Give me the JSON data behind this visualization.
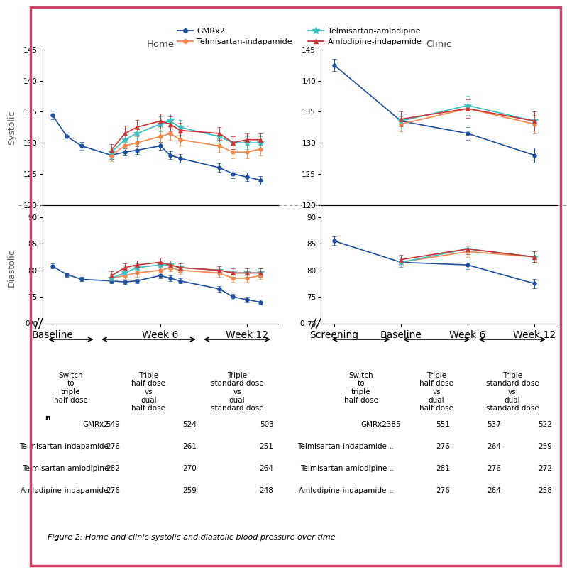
{
  "series_order": [
    "GMRx2",
    "Telmisartan-indapamide",
    "Telmisartan-amlodipine",
    "Amlodipine-indapamide"
  ],
  "colors": {
    "GMRx2": "#1f4e9e",
    "Telmisartan-indapamide": "#f4874b",
    "Telmisartan-amlodipine": "#3dbfbf",
    "Amlodipine-indapamide": "#cc3333"
  },
  "markers": {
    "GMRx2": "o",
    "Telmisartan-indapamide": "o",
    "Telmisartan-amlodipine": "*",
    "Amlodipine-indapamide": "^"
  },
  "marker_sizes": {
    "GMRx2": 4,
    "Telmisartan-indapamide": 4,
    "Telmisartan-amlodipine": 7,
    "Amlodipine-indapamide": 4
  },
  "home": {
    "n_points": 13,
    "x_positions": [
      0,
      0.75,
      1.5,
      3.0,
      3.7,
      4.3,
      5.5,
      6.0,
      6.5,
      8.5,
      9.2,
      9.9,
      10.6
    ],
    "xtick_positions": [
      0,
      5.5,
      9.9
    ],
    "xtick_labels": [
      "Baseline",
      "Week 6",
      "Week 12"
    ],
    "xlim": [
      -0.5,
      11.5
    ],
    "systolic": {
      "ylim": [
        120,
        145
      ],
      "yticks": [
        120,
        125,
        130,
        135,
        140,
        145
      ],
      "GMRx2": [
        134.5,
        131.0,
        129.5,
        128.0,
        128.5,
        128.8,
        129.5,
        128.0,
        127.5,
        126.0,
        125.0,
        124.5,
        124.0
      ],
      "Telmisartan-indapamide": [
        null,
        null,
        null,
        128.0,
        129.5,
        130.0,
        131.0,
        131.5,
        130.5,
        129.5,
        128.5,
        128.5,
        129.0
      ],
      "Telmisartan-amlodipine": [
        null,
        null,
        null,
        128.5,
        130.5,
        131.5,
        133.0,
        133.5,
        132.5,
        131.0,
        130.0,
        130.0,
        130.0
      ],
      "Amlodipine-indapamide": [
        null,
        null,
        null,
        128.8,
        131.5,
        132.5,
        133.5,
        133.0,
        132.0,
        131.5,
        130.0,
        130.5,
        130.5
      ],
      "GMRx2_err": [
        0.7,
        0.6,
        0.6,
        0.6,
        0.6,
        0.6,
        0.6,
        0.6,
        0.7,
        0.7,
        0.7,
        0.7,
        0.7
      ],
      "Telmisartan-indapamide_err": [
        null,
        null,
        null,
        1.0,
        1.0,
        1.0,
        1.0,
        1.0,
        1.0,
        1.0,
        1.0,
        1.0,
        1.0
      ],
      "Telmisartan-amlodipine_err": [
        null,
        null,
        null,
        1.0,
        1.0,
        1.2,
        1.2,
        1.2,
        1.2,
        1.0,
        1.0,
        1.0,
        1.0
      ],
      "Amlodipine-indapamide_err": [
        null,
        null,
        null,
        1.0,
        1.2,
        1.2,
        1.2,
        1.2,
        1.2,
        1.0,
        1.0,
        1.0,
        1.0
      ]
    },
    "diastolic": {
      "ylim": [
        70,
        91
      ],
      "yticks": [
        70,
        75,
        80,
        85,
        90
      ],
      "show_zero": true,
      "GMRx2": [
        80.8,
        79.2,
        78.3,
        78.0,
        77.8,
        78.0,
        79.0,
        78.5,
        78.0,
        76.5,
        75.0,
        74.5,
        74.0
      ],
      "Telmisartan-indapamide": [
        null,
        null,
        null,
        78.5,
        79.0,
        79.5,
        80.0,
        80.5,
        80.0,
        79.5,
        78.5,
        78.5,
        79.0
      ],
      "Telmisartan-amlodipine": [
        null,
        null,
        null,
        78.5,
        79.5,
        80.5,
        81.0,
        81.0,
        80.5,
        80.0,
        79.5,
        79.5,
        79.5
      ],
      "Amlodipine-indapamide": [
        null,
        null,
        null,
        79.0,
        80.5,
        81.0,
        81.5,
        81.0,
        80.5,
        80.0,
        79.5,
        79.5,
        79.5
      ],
      "GMRx2_err": [
        0.5,
        0.4,
        0.4,
        0.4,
        0.4,
        0.4,
        0.5,
        0.5,
        0.5,
        0.5,
        0.5,
        0.5,
        0.5
      ],
      "Telmisartan-indapamide_err": [
        null,
        null,
        null,
        0.7,
        0.7,
        0.7,
        0.7,
        0.7,
        0.7,
        0.7,
        0.7,
        0.7,
        0.7
      ],
      "Telmisartan-amlodipine_err": [
        null,
        null,
        null,
        0.8,
        0.8,
        0.8,
        0.8,
        0.8,
        0.8,
        0.8,
        0.8,
        0.8,
        0.8
      ],
      "Amlodipine-indapamide_err": [
        null,
        null,
        null,
        0.8,
        0.8,
        0.8,
        0.8,
        0.8,
        0.8,
        0.8,
        0.8,
        0.8,
        0.8
      ]
    }
  },
  "clinic": {
    "n_points": 4,
    "x_positions": [
      0,
      1.5,
      3.0,
      4.5
    ],
    "xtick_positions": [
      0,
      1.5,
      3.0,
      4.5
    ],
    "xtick_labels": [
      "Screening",
      "Baseline",
      "Week 6",
      "Week 12"
    ],
    "xlim": [
      -0.3,
      5.0
    ],
    "systolic": {
      "ylim": [
        120,
        145
      ],
      "yticks": [
        120,
        125,
        130,
        135,
        140,
        145
      ],
      "GMRx2": [
        142.5,
        133.5,
        131.5,
        128.0
      ],
      "Telmisartan-indapamide": [
        null,
        133.0,
        135.5,
        133.0
      ],
      "Telmisartan-amlodipine": [
        null,
        133.5,
        136.0,
        133.5
      ],
      "Amlodipine-indapamide": [
        null,
        133.8,
        135.5,
        133.5
      ],
      "GMRx2_err": [
        1.0,
        0.8,
        1.0,
        1.2
      ],
      "Telmisartan-indapamide_err": [
        null,
        1.2,
        1.5,
        1.5
      ],
      "Telmisartan-amlodipine_err": [
        null,
        1.2,
        1.5,
        1.5
      ],
      "Amlodipine-indapamide_err": [
        null,
        1.2,
        1.5,
        1.5
      ]
    },
    "diastolic": {
      "ylim": [
        70,
        91
      ],
      "yticks": [
        70,
        75,
        80,
        85,
        90
      ],
      "show_zero": true,
      "GMRx2": [
        85.5,
        81.5,
        81.0,
        77.5
      ],
      "Telmisartan-indapamide": [
        null,
        81.5,
        83.5,
        82.5
      ],
      "Telmisartan-amlodipine": [
        null,
        81.5,
        84.0,
        82.5
      ],
      "Amlodipine-indapamide": [
        null,
        82.0,
        84.0,
        82.5
      ],
      "GMRx2_err": [
        0.8,
        0.6,
        0.8,
        0.9
      ],
      "Telmisartan-indapamide_err": [
        null,
        0.9,
        1.0,
        1.0
      ],
      "Telmisartan-amlodipine_err": [
        null,
        0.9,
        1.0,
        1.0
      ],
      "Amlodipine-indapamide_err": [
        null,
        0.9,
        1.0,
        1.0
      ]
    }
  },
  "home_table": {
    "rows": [
      "GMRx2",
      "Telmisartan-indapamide",
      "Telmisartan-amlodipine",
      "Amlodipine-indapamide"
    ],
    "col1": [
      "549",
      "276",
      "282",
      "276"
    ],
    "col2": [
      "524",
      "261",
      "270",
      "259"
    ],
    "col3": [
      "503",
      "251",
      "264",
      "248"
    ]
  },
  "clinic_table": {
    "rows": [
      "GMRx2",
      "Telmisartan-indapamide",
      "Telmisartan-amlodipine",
      "Amlodipine-indapamide"
    ],
    "col0": [
      "1385",
      "..",
      "..",
      ".."
    ],
    "col1": [
      "551",
      "276",
      "281",
      "276"
    ],
    "col2": [
      "537",
      "264",
      "276",
      "264"
    ],
    "col3": [
      "522",
      "259",
      "272",
      "258"
    ]
  },
  "border_color": "#cc4466",
  "figure_caption": "Figure 2: Home and clinic systolic and diastolic blood pressure over time"
}
